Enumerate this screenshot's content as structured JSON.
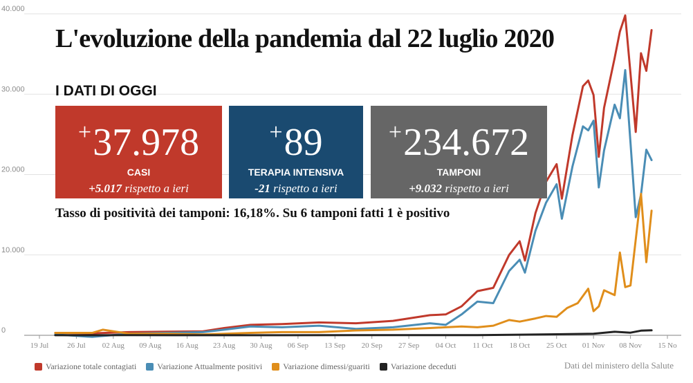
{
  "header": {
    "title": "L'evoluzione della pandemia dal 22 luglio 2020",
    "subtitle": "I DATI DI OGGI"
  },
  "stats": {
    "casi": {
      "plus": "+",
      "value": "37.978",
      "label": "CASI",
      "change_value": "+5.017",
      "change_text": " rispetto a ieri",
      "color": "#c0392b"
    },
    "terapia": {
      "plus": "+",
      "value": "89",
      "label": "TERAPIA INTENSIVA",
      "change_value": "-21",
      "change_text": " rispetto a ieri",
      "color": "#1a4a70"
    },
    "tamponi": {
      "plus": "+",
      "value": "234.672",
      "label": "TAMPONI",
      "change_value": "+9.032",
      "change_text": " rispetto a ieri",
      "color": "#666666"
    }
  },
  "positivity": {
    "text": "Tasso di positività dei tamponi: 16,18%. Su 6 tamponi fatti 1 è positivo"
  },
  "source": "Dati del ministero della Salute",
  "chart_data": {
    "type": "line",
    "ylim": [
      0,
      40000
    ],
    "y_ticks": [
      0,
      10000,
      20000,
      30000,
      40000
    ],
    "y_tick_labels": [
      "0",
      "10.000",
      "20.000",
      "30.000",
      "40.000"
    ],
    "x_ticks": [
      "19 Jul",
      "26 Jul",
      "02 Aug",
      "09 Aug",
      "16 Aug",
      "23 Aug",
      "30 Aug",
      "06 Sep",
      "13 Sep",
      "20 Sep",
      "27 Sep",
      "04 Oct",
      "11 Oct",
      "18 Oct",
      "25 Oct",
      "01 Nov",
      "08 Nov",
      "15 No"
    ],
    "x_tick_dates": [
      "2020-07-19",
      "2020-07-26",
      "2020-08-02",
      "2020-08-09",
      "2020-08-16",
      "2020-08-23",
      "2020-08-30",
      "2020-09-06",
      "2020-09-13",
      "2020-09-20",
      "2020-09-27",
      "2020-10-04",
      "2020-10-11",
      "2020-10-18",
      "2020-10-25",
      "2020-11-01",
      "2020-11-08",
      "2020-11-15"
    ],
    "grid": "horizontal",
    "legend_position": "bottom",
    "series": [
      {
        "name": "Variazione totale contagiati",
        "color": "#c0392b",
        "points": [
          [
            "2020-07-22",
            300
          ],
          [
            "2020-07-29",
            250
          ],
          [
            "2020-08-05",
            400
          ],
          [
            "2020-08-12",
            450
          ],
          [
            "2020-08-19",
            500
          ],
          [
            "2020-08-23",
            900
          ],
          [
            "2020-08-28",
            1300
          ],
          [
            "2020-09-03",
            1400
          ],
          [
            "2020-09-10",
            1600
          ],
          [
            "2020-09-17",
            1500
          ],
          [
            "2020-09-24",
            1800
          ],
          [
            "2020-10-01",
            2500
          ],
          [
            "2020-10-04",
            2600
          ],
          [
            "2020-10-07",
            3600
          ],
          [
            "2020-10-10",
            5500
          ],
          [
            "2020-10-13",
            5900
          ],
          [
            "2020-10-16",
            10000
          ],
          [
            "2020-10-18",
            11700
          ],
          [
            "2020-10-19",
            9300
          ],
          [
            "2020-10-21",
            15200
          ],
          [
            "2020-10-23",
            19100
          ],
          [
            "2020-10-25",
            21300
          ],
          [
            "2020-10-26",
            17000
          ],
          [
            "2020-10-28",
            24900
          ],
          [
            "2020-10-30",
            31000
          ],
          [
            "2020-10-31",
            31700
          ],
          [
            "2020-11-01",
            29900
          ],
          [
            "2020-11-02",
            22200
          ],
          [
            "2020-11-03",
            28300
          ],
          [
            "2020-11-05",
            34500
          ],
          [
            "2020-11-06",
            37800
          ],
          [
            "2020-11-07",
            39800
          ],
          [
            "2020-11-08",
            32600
          ],
          [
            "2020-11-09",
            25300
          ],
          [
            "2020-11-10",
            35100
          ],
          [
            "2020-11-11",
            32900
          ],
          [
            "2020-11-12",
            37978
          ]
        ]
      },
      {
        "name": "Variazione Attualmente positivi",
        "color": "#4a8db5",
        "points": [
          [
            "2020-07-22",
            100
          ],
          [
            "2020-07-29",
            -200
          ],
          [
            "2020-08-05",
            200
          ],
          [
            "2020-08-12",
            300
          ],
          [
            "2020-08-19",
            400
          ],
          [
            "2020-08-23",
            700
          ],
          [
            "2020-08-28",
            1100
          ],
          [
            "2020-09-03",
            1000
          ],
          [
            "2020-09-10",
            1200
          ],
          [
            "2020-09-17",
            800
          ],
          [
            "2020-09-24",
            1000
          ],
          [
            "2020-10-01",
            1500
          ],
          [
            "2020-10-04",
            1300
          ],
          [
            "2020-10-07",
            2600
          ],
          [
            "2020-10-10",
            4200
          ],
          [
            "2020-10-13",
            4000
          ],
          [
            "2020-10-16",
            8000
          ],
          [
            "2020-10-18",
            9400
          ],
          [
            "2020-10-19",
            7800
          ],
          [
            "2020-10-21",
            13000
          ],
          [
            "2020-10-23",
            16500
          ],
          [
            "2020-10-25",
            18800
          ],
          [
            "2020-10-26",
            14500
          ],
          [
            "2020-10-28",
            21000
          ],
          [
            "2020-10-30",
            26000
          ],
          [
            "2020-10-31",
            25500
          ],
          [
            "2020-11-01",
            26700
          ],
          [
            "2020-11-02",
            18400
          ],
          [
            "2020-11-03",
            23000
          ],
          [
            "2020-11-05",
            28700
          ],
          [
            "2020-11-06",
            27000
          ],
          [
            "2020-11-07",
            33000
          ],
          [
            "2020-11-08",
            24000
          ],
          [
            "2020-11-09",
            14700
          ],
          [
            "2020-11-10",
            17500
          ],
          [
            "2020-11-11",
            23100
          ],
          [
            "2020-11-12",
            21800
          ]
        ]
      },
      {
        "name": "Variazione dimessi/guariti",
        "color": "#e08e1b",
        "points": [
          [
            "2020-07-22",
            300
          ],
          [
            "2020-07-29",
            300
          ],
          [
            "2020-07-31",
            700
          ],
          [
            "2020-08-05",
            200
          ],
          [
            "2020-08-12",
            200
          ],
          [
            "2020-08-19",
            100
          ],
          [
            "2020-08-23",
            200
          ],
          [
            "2020-08-28",
            300
          ],
          [
            "2020-09-03",
            400
          ],
          [
            "2020-09-10",
            400
          ],
          [
            "2020-09-17",
            600
          ],
          [
            "2020-09-24",
            700
          ],
          [
            "2020-10-01",
            900
          ],
          [
            "2020-10-04",
            1000
          ],
          [
            "2020-10-07",
            1100
          ],
          [
            "2020-10-10",
            1000
          ],
          [
            "2020-10-13",
            1200
          ],
          [
            "2020-10-16",
            1900
          ],
          [
            "2020-10-18",
            1700
          ],
          [
            "2020-10-21",
            2100
          ],
          [
            "2020-10-23",
            2400
          ],
          [
            "2020-10-25",
            2300
          ],
          [
            "2020-10-27",
            3400
          ],
          [
            "2020-10-29",
            4000
          ],
          [
            "2020-10-31",
            5800
          ],
          [
            "2020-11-01",
            3000
          ],
          [
            "2020-11-02",
            3600
          ],
          [
            "2020-11-03",
            5600
          ],
          [
            "2020-11-05",
            5000
          ],
          [
            "2020-11-06",
            10300
          ],
          [
            "2020-11-07",
            6000
          ],
          [
            "2020-11-08",
            6200
          ],
          [
            "2020-11-10",
            17600
          ],
          [
            "2020-11-11",
            9100
          ],
          [
            "2020-11-12",
            15500
          ]
        ]
      },
      {
        "name": "Variazione deceduti",
        "color": "#222222",
        "points": [
          [
            "2020-07-22",
            10
          ],
          [
            "2020-08-05",
            20
          ],
          [
            "2020-08-19",
            10
          ],
          [
            "2020-09-02",
            10
          ],
          [
            "2020-09-16",
            20
          ],
          [
            "2020-09-30",
            20
          ],
          [
            "2020-10-10",
            30
          ],
          [
            "2020-10-18",
            80
          ],
          [
            "2020-10-25",
            130
          ],
          [
            "2020-11-01",
            200
          ],
          [
            "2020-11-05",
            440
          ],
          [
            "2020-11-08",
            330
          ],
          [
            "2020-11-10",
            580
          ],
          [
            "2020-11-12",
            620
          ]
        ]
      }
    ]
  }
}
